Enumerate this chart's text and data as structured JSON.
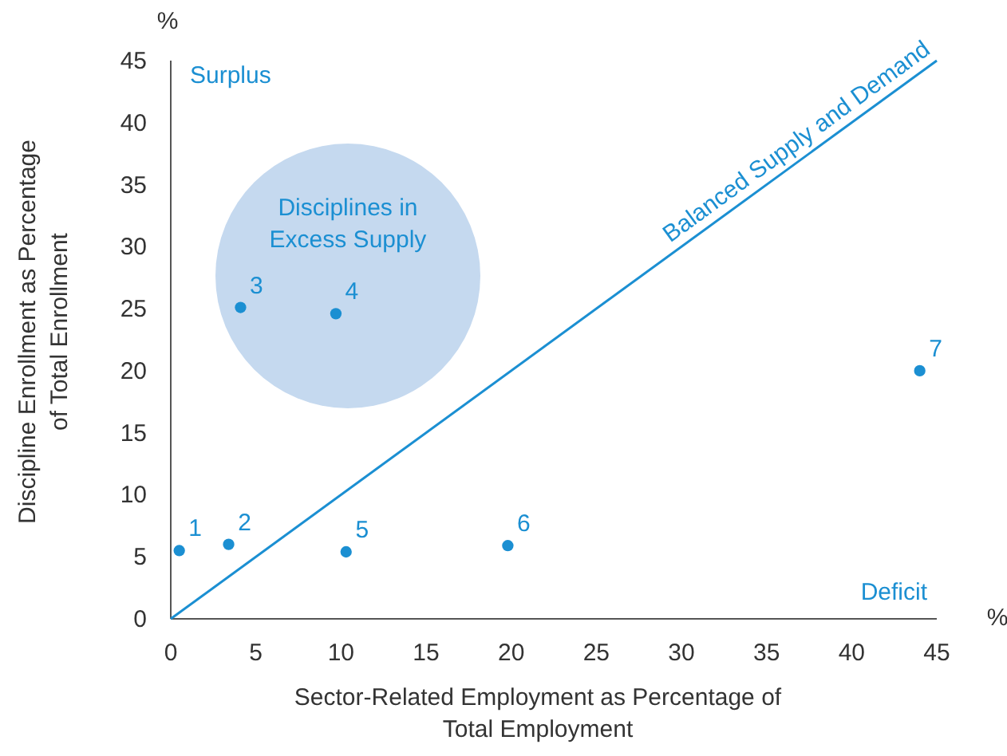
{
  "chart_data": {
    "type": "scatter",
    "xlabel": "Sector-Related Employment as Percentage of Total Employment",
    "ylabel": "Discipline Enrollment as Percentage of Total Enrollment",
    "xlim": [
      0,
      45
    ],
    "ylim": [
      0,
      45
    ],
    "xticks": [
      0,
      5,
      10,
      15,
      20,
      25,
      30,
      35,
      40,
      45
    ],
    "yticks": [
      0,
      5,
      10,
      15,
      20,
      25,
      30,
      35,
      40,
      45
    ],
    "grid": false,
    "series": [
      {
        "marker": "circle",
        "color": "#1b8fd2",
        "x": [
          0.5,
          3.4,
          4.1,
          9.7,
          10.3,
          19.8,
          44
        ],
        "values": [
          5.5,
          6,
          25.1,
          24.6,
          5.4,
          5.9,
          20
        ]
      },
      {
        "type": "line",
        "name": "Balanced Supply and Demand",
        "color": "#1b8fd2",
        "x": [
          0,
          45
        ],
        "values": [
          0,
          45
        ]
      }
    ],
    "annotations": [
      "Surplus",
      "Deficit",
      "%",
      "%",
      "Disciplines in Excess Supply",
      {
        "text": "1",
        "x": 0.5,
        "y": 5.5
      },
      {
        "text": "2",
        "x": 3.4,
        "y": 6
      },
      {
        "text": "3",
        "x": 4.1,
        "y": 25.1
      },
      {
        "text": "4",
        "x": 9.7,
        "y": 24.6
      },
      {
        "text": "5",
        "x": 10.3,
        "y": 5.4
      },
      {
        "text": "6",
        "x": 19.8,
        "y": 5.9
      },
      {
        "text": "7",
        "x": 44,
        "y": 20
      }
    ]
  }
}
